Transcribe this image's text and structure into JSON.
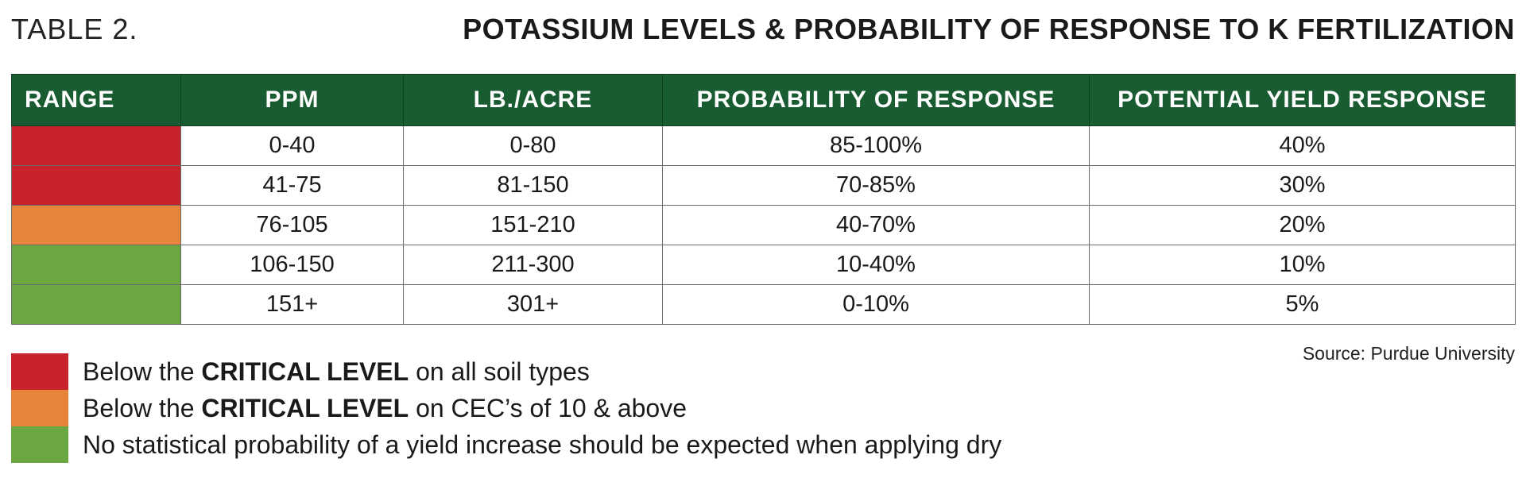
{
  "header": {
    "label": "TABLE 2.",
    "title": "POTASSIUM LEVELS & PROBABILITY OF RESPONSE TO K FERTILIZATION"
  },
  "colors": {
    "header_green": "#1a5c32",
    "red": "#c8222a",
    "orange": "#e8843a",
    "green": "#6aa741"
  },
  "table": {
    "columns": [
      "RANGE",
      "PPM",
      "LB./ACRE",
      "PROBABILITY OF RESPONSE",
      "POTENTIAL YIELD RESPONSE"
    ],
    "rows": [
      {
        "range_color": "#c8222a",
        "ppm": "0-40",
        "lb_acre": "0-80",
        "probability": "85-100%",
        "yield": "40%"
      },
      {
        "range_color": "#c8222a",
        "ppm": "41-75",
        "lb_acre": "81-150",
        "probability": "70-85%",
        "yield": "30%"
      },
      {
        "range_color": "#e8843a",
        "ppm": "76-105",
        "lb_acre": "151-210",
        "probability": "40-70%",
        "yield": "20%"
      },
      {
        "range_color": "#6aa741",
        "ppm": "106-150",
        "lb_acre": "211-300",
        "probability": "10-40%",
        "yield": "10%"
      },
      {
        "range_color": "#6aa741",
        "ppm": "151+",
        "lb_acre": "301+",
        "probability": "0-10%",
        "yield": "5%"
      }
    ]
  },
  "source": "Source: Purdue University",
  "legend": [
    {
      "color": "#c8222a",
      "prefix": "Below the ",
      "bold": "CRITICAL LEVEL",
      "suffix": " on all soil types"
    },
    {
      "color": "#e8843a",
      "prefix": "Below the ",
      "bold": "CRITICAL LEVEL",
      "suffix": " on CEC’s of 10 & above"
    },
    {
      "color": "#6aa741",
      "prefix": "No statistical probability of a yield increase should be expected when applying dry",
      "bold": "",
      "suffix": ""
    }
  ]
}
